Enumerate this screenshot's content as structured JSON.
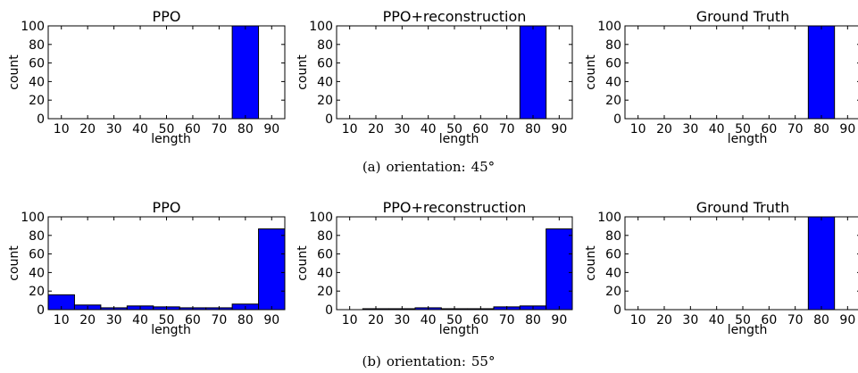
{
  "captions": [
    {
      "label": "(a)",
      "text": "orientation:",
      "angle": "45°"
    },
    {
      "label": "(b)",
      "text": "orientation:",
      "angle": "55°"
    }
  ],
  "chart_data": [
    {
      "type": "bar",
      "title": "PPO",
      "xlabel": "length",
      "ylabel": "count",
      "xticks": [
        10,
        20,
        30,
        40,
        50,
        60,
        70,
        80,
        90
      ],
      "yticks": [
        0,
        20,
        40,
        60,
        80,
        100
      ],
      "xlim": [
        5,
        95
      ],
      "ylim": [
        0,
        100
      ],
      "bins": [
        {
          "x0": 75,
          "x1": 85,
          "value": 100
        }
      ],
      "bar_color": "#0000ff"
    },
    {
      "type": "bar",
      "title": "PPO+reconstruction",
      "xlabel": "length",
      "ylabel": "count",
      "xticks": [
        10,
        20,
        30,
        40,
        50,
        60,
        70,
        80,
        90
      ],
      "yticks": [
        0,
        20,
        40,
        60,
        80,
        100
      ],
      "xlim": [
        5,
        95
      ],
      "ylim": [
        0,
        100
      ],
      "bins": [
        {
          "x0": 75,
          "x1": 85,
          "value": 100
        }
      ],
      "bar_color": "#0000ff"
    },
    {
      "type": "bar",
      "title": "Ground Truth",
      "xlabel": "length",
      "ylabel": "count",
      "xticks": [
        10,
        20,
        30,
        40,
        50,
        60,
        70,
        80,
        90
      ],
      "yticks": [
        0,
        20,
        40,
        60,
        80,
        100
      ],
      "xlim": [
        5,
        95
      ],
      "ylim": [
        0,
        100
      ],
      "bins": [
        {
          "x0": 75,
          "x1": 85,
          "value": 100
        }
      ],
      "bar_color": "#0000ff"
    },
    {
      "type": "bar",
      "title": "PPO",
      "xlabel": "length",
      "ylabel": "count",
      "xticks": [
        10,
        20,
        30,
        40,
        50,
        60,
        70,
        80,
        90
      ],
      "yticks": [
        0,
        20,
        40,
        60,
        80,
        100
      ],
      "xlim": [
        5,
        95
      ],
      "ylim": [
        0,
        100
      ],
      "bins": [
        {
          "x0": 5,
          "x1": 15,
          "value": 16
        },
        {
          "x0": 15,
          "x1": 25,
          "value": 5
        },
        {
          "x0": 25,
          "x1": 35,
          "value": 2
        },
        {
          "x0": 35,
          "x1": 45,
          "value": 4
        },
        {
          "x0": 45,
          "x1": 55,
          "value": 3
        },
        {
          "x0": 55,
          "x1": 65,
          "value": 2
        },
        {
          "x0": 65,
          "x1": 75,
          "value": 2
        },
        {
          "x0": 75,
          "x1": 85,
          "value": 6
        },
        {
          "x0": 85,
          "x1": 95,
          "value": 87
        }
      ],
      "bar_color": "#0000ff"
    },
    {
      "type": "bar",
      "title": "PPO+reconstruction",
      "xlabel": "length",
      "ylabel": "count",
      "xticks": [
        10,
        20,
        30,
        40,
        50,
        60,
        70,
        80,
        90
      ],
      "yticks": [
        0,
        20,
        40,
        60,
        80,
        100
      ],
      "xlim": [
        5,
        95
      ],
      "ylim": [
        0,
        100
      ],
      "bins": [
        {
          "x0": 15,
          "x1": 25,
          "value": 1
        },
        {
          "x0": 25,
          "x1": 35,
          "value": 1
        },
        {
          "x0": 35,
          "x1": 45,
          "value": 2
        },
        {
          "x0": 45,
          "x1": 55,
          "value": 1
        },
        {
          "x0": 55,
          "x1": 65,
          "value": 1
        },
        {
          "x0": 65,
          "x1": 75,
          "value": 3
        },
        {
          "x0": 75,
          "x1": 85,
          "value": 4
        },
        {
          "x0": 85,
          "x1": 95,
          "value": 87
        }
      ],
      "bar_color": "#0000ff"
    },
    {
      "type": "bar",
      "title": "Ground Truth",
      "xlabel": "length",
      "ylabel": "count",
      "xticks": [
        10,
        20,
        30,
        40,
        50,
        60,
        70,
        80,
        90
      ],
      "yticks": [
        0,
        20,
        40,
        60,
        80,
        100
      ],
      "xlim": [
        5,
        95
      ],
      "ylim": [
        0,
        100
      ],
      "bins": [
        {
          "x0": 75,
          "x1": 85,
          "value": 100
        }
      ],
      "bar_color": "#0000ff"
    }
  ]
}
